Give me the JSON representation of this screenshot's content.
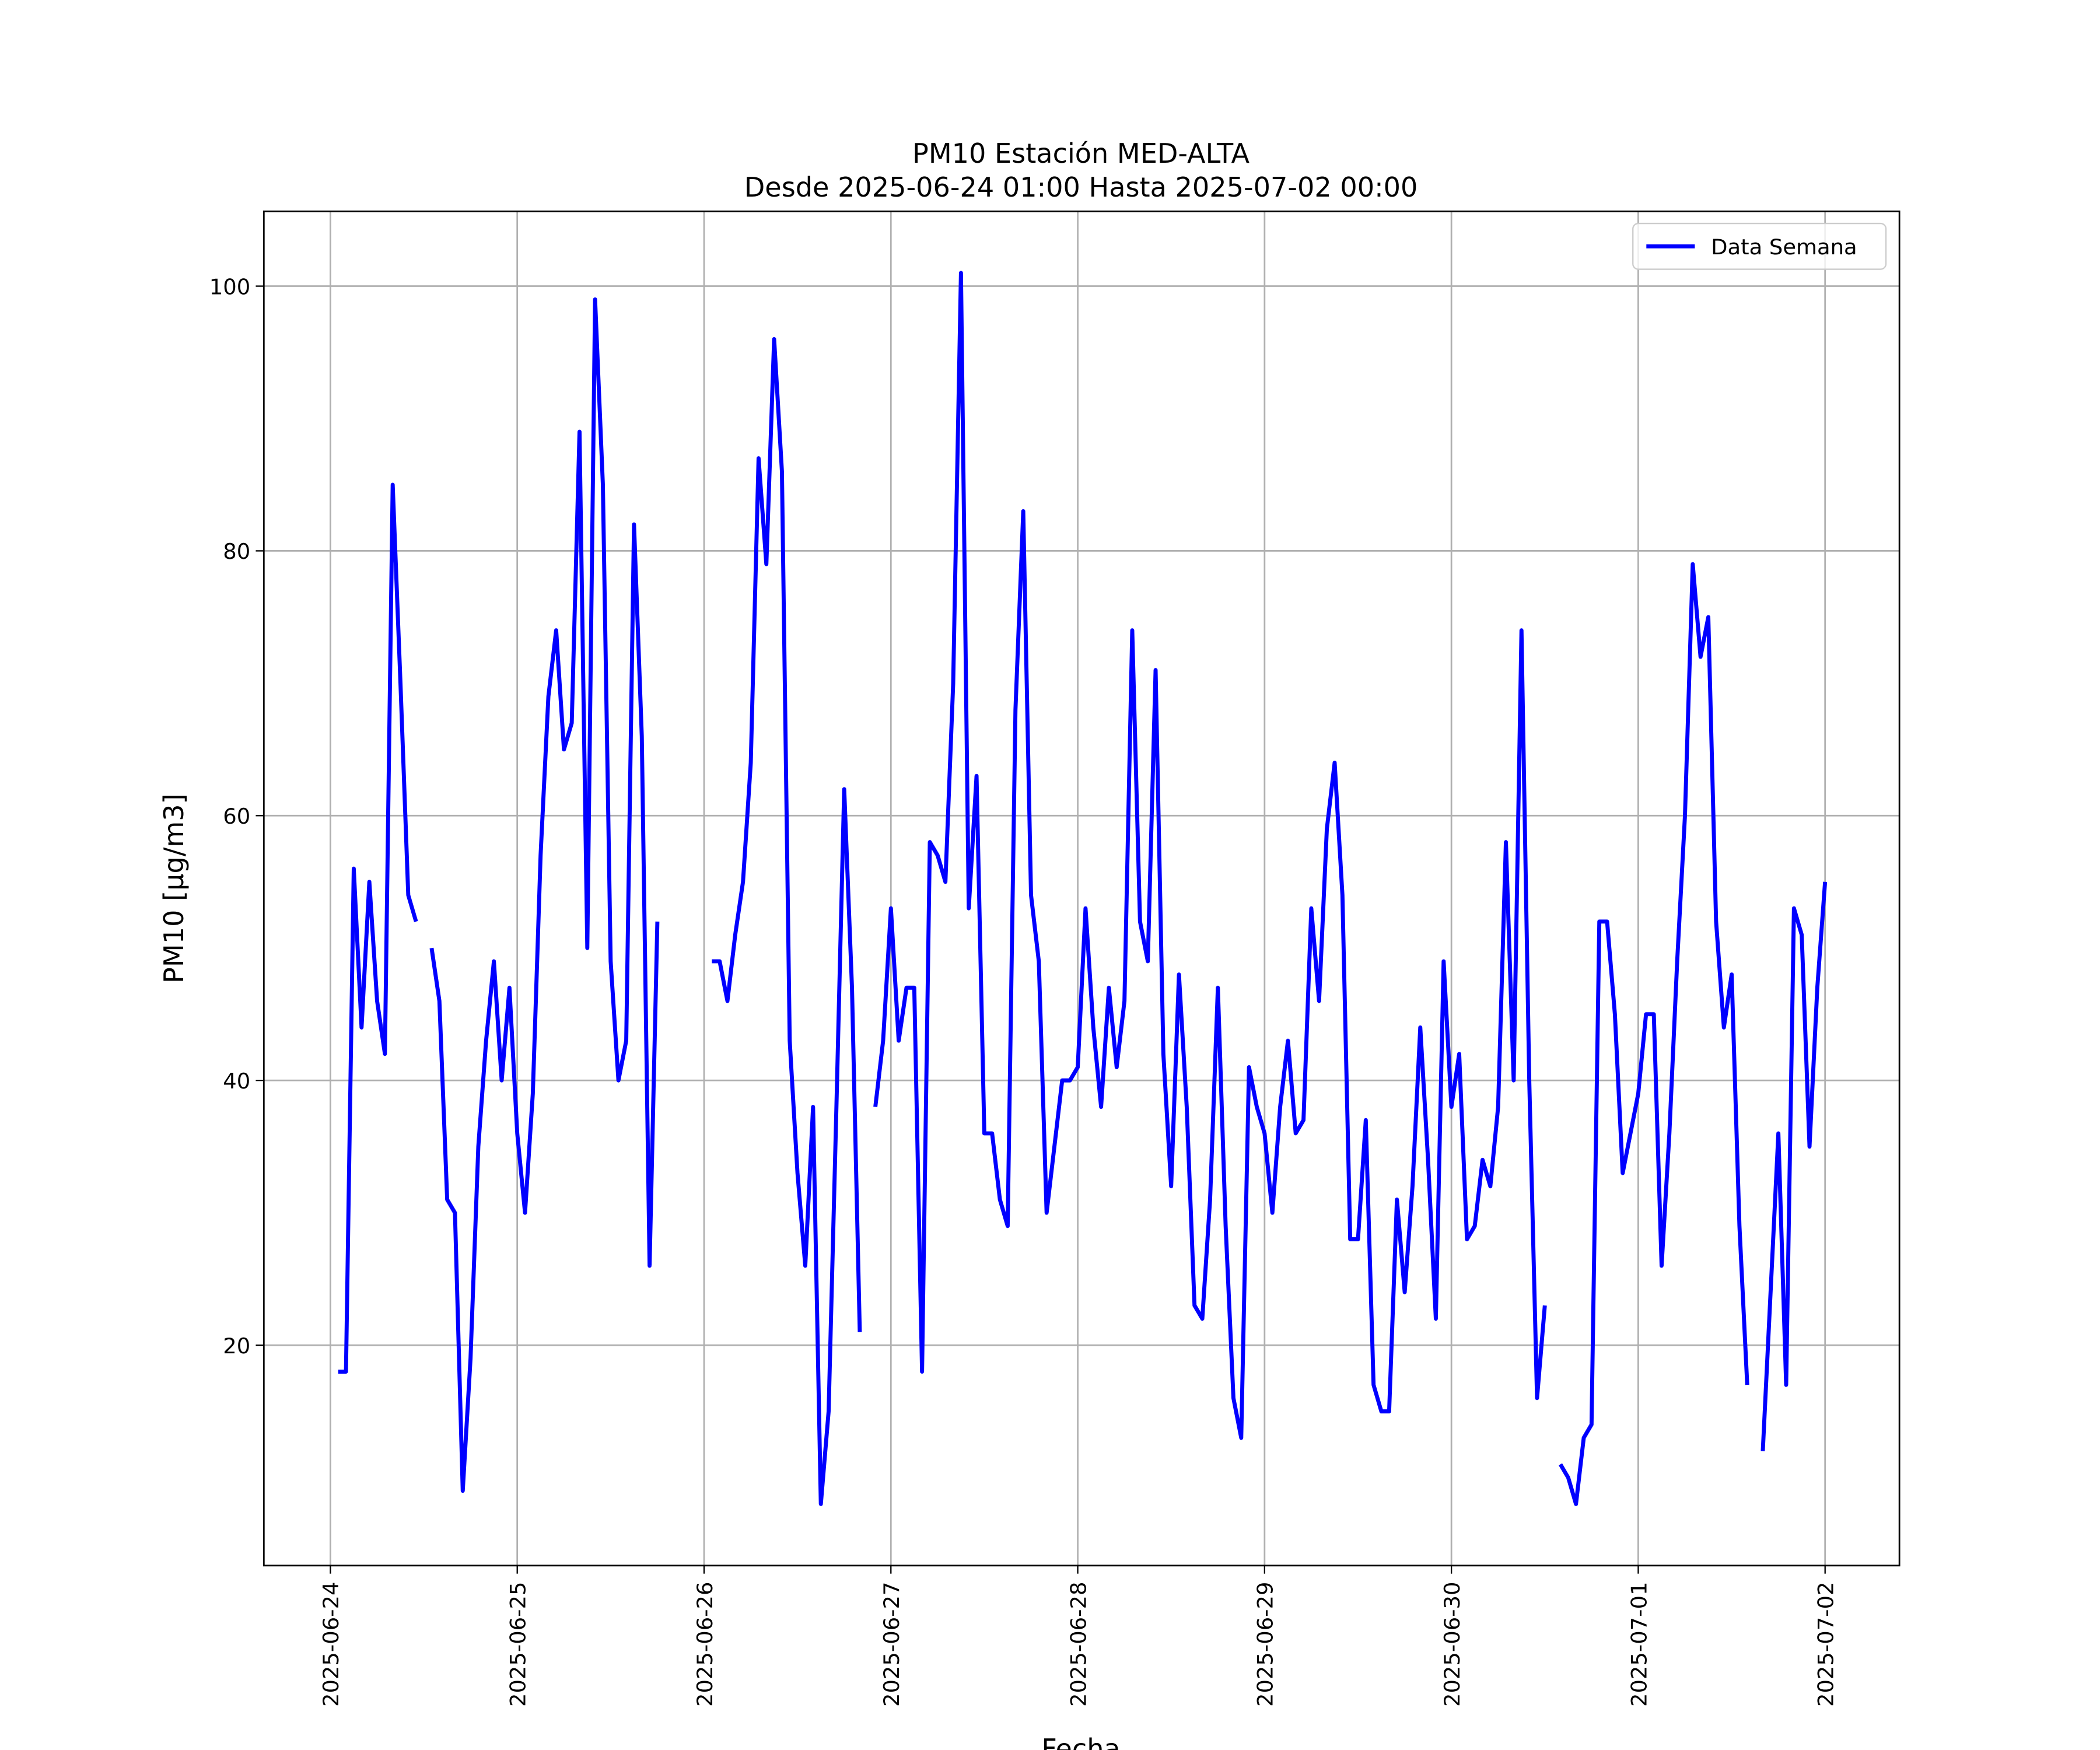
{
  "chart_data": {
    "type": "line",
    "title": "PM10 Estación MED-ALTA",
    "subtitle": "Desde 2025-06-24 01:00 Hasta 2025-07-02 00:00",
    "x_label": "Fecha",
    "y_label": "PM10 [μg/m3]",
    "legend": "upper right",
    "grid": true,
    "xlim": [
      "2025-06-23 15:27",
      "2025-07-02 09:33"
    ],
    "xticks": [
      "2025-06-24",
      "2025-06-25",
      "2025-06-26",
      "2025-06-27",
      "2025-06-28",
      "2025-06-29",
      "2025-06-30",
      "2025-07-01",
      "2025-07-02"
    ],
    "ylim": [
      3.35,
      105.65
    ],
    "yticks": [
      20,
      40,
      60,
      80,
      100
    ],
    "x": [
      "2025-06-24 01:00",
      "2025-06-24 02:00",
      "2025-06-24 03:00",
      "2025-06-24 04:00",
      "2025-06-24 05:00",
      "2025-06-24 06:00",
      "2025-06-24 07:00",
      "2025-06-24 08:00",
      "2025-06-24 09:00",
      "2025-06-24 10:00",
      "2025-06-24 11:00",
      "2025-06-24 12:00",
      "2025-06-24 13:00",
      "2025-06-24 14:00",
      "2025-06-24 15:00",
      "2025-06-24 16:00",
      "2025-06-24 17:00",
      "2025-06-24 18:00",
      "2025-06-24 19:00",
      "2025-06-24 20:00",
      "2025-06-24 21:00",
      "2025-06-24 22:00",
      "2025-06-24 23:00",
      "2025-06-25 00:00",
      "2025-06-25 01:00",
      "2025-06-25 02:00",
      "2025-06-25 03:00",
      "2025-06-25 04:00",
      "2025-06-25 05:00",
      "2025-06-25 06:00",
      "2025-06-25 07:00",
      "2025-06-25 08:00",
      "2025-06-25 09:00",
      "2025-06-25 10:00",
      "2025-06-25 11:00",
      "2025-06-25 12:00",
      "2025-06-25 13:00",
      "2025-06-25 14:00",
      "2025-06-25 15:00",
      "2025-06-25 16:00",
      "2025-06-25 17:00",
      "2025-06-25 18:00",
      "2025-06-25 19:00",
      "2025-06-25 20:00",
      "2025-06-25 21:00",
      "2025-06-25 22:00",
      "2025-06-25 23:00",
      "2025-06-26 00:00",
      "2025-06-26 01:00",
      "2025-06-26 02:00",
      "2025-06-26 03:00",
      "2025-06-26 04:00",
      "2025-06-26 05:00",
      "2025-06-26 06:00",
      "2025-06-26 07:00",
      "2025-06-26 08:00",
      "2025-06-26 09:00",
      "2025-06-26 10:00",
      "2025-06-26 11:00",
      "2025-06-26 12:00",
      "2025-06-26 13:00",
      "2025-06-26 14:00",
      "2025-06-26 15:00",
      "2025-06-26 16:00",
      "2025-06-26 17:00",
      "2025-06-26 18:00",
      "2025-06-26 19:00",
      "2025-06-26 20:00",
      "2025-06-26 21:00",
      "2025-06-26 22:00",
      "2025-06-26 23:00",
      "2025-06-27 00:00",
      "2025-06-27 01:00",
      "2025-06-27 02:00",
      "2025-06-27 03:00",
      "2025-06-27 04:00",
      "2025-06-27 05:00",
      "2025-06-27 06:00",
      "2025-06-27 07:00",
      "2025-06-27 08:00",
      "2025-06-27 09:00",
      "2025-06-27 10:00",
      "2025-06-27 11:00",
      "2025-06-27 12:00",
      "2025-06-27 13:00",
      "2025-06-27 14:00",
      "2025-06-27 15:00",
      "2025-06-27 16:00",
      "2025-06-27 17:00",
      "2025-06-27 18:00",
      "2025-06-27 19:00",
      "2025-06-27 20:00",
      "2025-06-27 21:00",
      "2025-06-27 22:00",
      "2025-06-27 23:00",
      "2025-06-28 00:00",
      "2025-06-28 01:00",
      "2025-06-28 02:00",
      "2025-06-28 03:00",
      "2025-06-28 04:00",
      "2025-06-28 05:00",
      "2025-06-28 06:00",
      "2025-06-28 07:00",
      "2025-06-28 08:00",
      "2025-06-28 09:00",
      "2025-06-28 10:00",
      "2025-06-28 11:00",
      "2025-06-28 12:00",
      "2025-06-28 13:00",
      "2025-06-28 14:00",
      "2025-06-28 15:00",
      "2025-06-28 16:00",
      "2025-06-28 17:00",
      "2025-06-28 18:00",
      "2025-06-28 19:00",
      "2025-06-28 20:00",
      "2025-06-28 21:00",
      "2025-06-28 22:00",
      "2025-06-28 23:00",
      "2025-06-29 00:00",
      "2025-06-29 01:00",
      "2025-06-29 02:00",
      "2025-06-29 03:00",
      "2025-06-29 04:00",
      "2025-06-29 05:00",
      "2025-06-29 06:00",
      "2025-06-29 07:00",
      "2025-06-29 08:00",
      "2025-06-29 09:00",
      "2025-06-29 10:00",
      "2025-06-29 11:00",
      "2025-06-29 12:00",
      "2025-06-29 13:00",
      "2025-06-29 14:00",
      "2025-06-29 15:00",
      "2025-06-29 16:00",
      "2025-06-29 17:00",
      "2025-06-29 18:00",
      "2025-06-29 19:00",
      "2025-06-29 20:00",
      "2025-06-29 21:00",
      "2025-06-29 22:00",
      "2025-06-29 23:00",
      "2025-06-30 00:00",
      "2025-06-30 01:00",
      "2025-06-30 02:00",
      "2025-06-30 03:00",
      "2025-06-30 04:00",
      "2025-06-30 05:00",
      "2025-06-30 06:00",
      "2025-06-30 07:00",
      "2025-06-30 08:00",
      "2025-06-30 09:00",
      "2025-06-30 10:00",
      "2025-06-30 11:00",
      "2025-06-30 12:00",
      "2025-06-30 13:00",
      "2025-06-30 14:00",
      "2025-06-30 15:00",
      "2025-06-30 16:00",
      "2025-06-30 17:00",
      "2025-06-30 18:00",
      "2025-06-30 19:00",
      "2025-06-30 20:00",
      "2025-06-30 21:00",
      "2025-06-30 22:00",
      "2025-06-30 23:00",
      "2025-07-01 00:00",
      "2025-07-01 01:00",
      "2025-07-01 02:00",
      "2025-07-01 03:00",
      "2025-07-01 04:00",
      "2025-07-01 05:00",
      "2025-07-01 06:00",
      "2025-07-01 07:00",
      "2025-07-01 08:00",
      "2025-07-01 09:00",
      "2025-07-01 10:00",
      "2025-07-01 11:00",
      "2025-07-01 12:00",
      "2025-07-01 13:00",
      "2025-07-01 14:00",
      "2025-07-01 15:00",
      "2025-07-01 16:00",
      "2025-07-01 17:00",
      "2025-07-01 18:00",
      "2025-07-01 19:00",
      "2025-07-01 20:00",
      "2025-07-01 21:00",
      "2025-07-01 22:00",
      "2025-07-01 23:00",
      "2025-07-02 00:00"
    ],
    "series": [
      {
        "name": "Data Semana",
        "color": "#0000ff",
        "values": [
          18,
          18,
          56,
          44,
          55,
          46,
          42,
          85,
          70,
          54,
          52,
          null,
          50,
          46,
          31,
          30,
          9,
          19,
          35,
          43,
          49,
          40,
          47,
          36,
          30,
          39,
          57,
          69,
          74,
          65,
          67,
          89,
          50,
          99,
          85,
          49,
          40,
          43,
          82,
          66,
          26,
          52,
          null,
          null,
          null,
          null,
          null,
          null,
          49,
          49,
          46,
          51,
          55,
          64,
          87,
          79,
          96,
          86,
          43,
          33,
          26,
          38,
          8,
          15,
          38,
          62,
          47,
          21,
          null,
          38,
          43,
          53,
          43,
          47,
          47,
          18,
          58,
          57,
          55,
          70,
          101,
          53,
          63,
          36,
          36,
          31,
          29,
          68,
          83,
          54,
          49,
          30,
          35,
          40,
          40,
          41,
          53,
          44,
          38,
          47,
          41,
          46,
          74,
          52,
          49,
          71,
          42,
          32,
          48,
          38,
          23,
          22,
          31,
          47,
          29,
          16,
          13,
          41,
          38,
          36,
          30,
          38,
          43,
          36,
          37,
          53,
          46,
          59,
          64,
          54,
          28,
          28,
          37,
          17,
          15,
          15,
          31,
          24,
          32,
          44,
          34,
          22,
          49,
          38,
          42,
          28,
          29,
          34,
          32,
          38,
          58,
          40,
          74,
          40,
          16,
          23,
          null,
          11,
          10,
          8,
          13,
          14,
          52,
          52,
          45,
          33,
          36,
          39,
          45,
          45,
          26,
          36,
          49,
          60,
          79,
          72,
          75,
          52,
          44,
          48,
          29,
          17,
          null,
          12,
          24,
          36,
          17,
          53,
          51,
          35,
          47,
          55
        ]
      }
    ]
  }
}
